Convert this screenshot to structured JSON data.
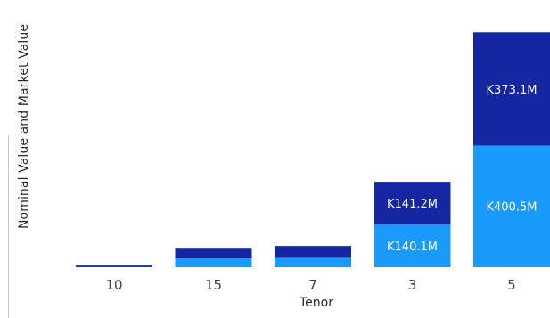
{
  "chart_data": {
    "type": "bar",
    "stacked": true,
    "xlabel": "Tenor",
    "ylabel": "Nominal Value and Market Value",
    "categories": [
      "10",
      "15",
      "7",
      "3",
      "5"
    ],
    "ylim": [
      0,
      880
    ],
    "series": [
      {
        "color": "#1a9bfc",
        "values": [
          0.5,
          29,
          31,
          140.1,
          400.5
        ],
        "labels": [
          "",
          "",
          "",
          "K140.1M",
          "K400.5M"
        ]
      },
      {
        "color": "#1427a0",
        "values": [
          5,
          35,
          39,
          141.2,
          373.1
        ],
        "labels": [
          "",
          "",
          "",
          "K141.2M",
          "K373.1M"
        ]
      }
    ]
  }
}
